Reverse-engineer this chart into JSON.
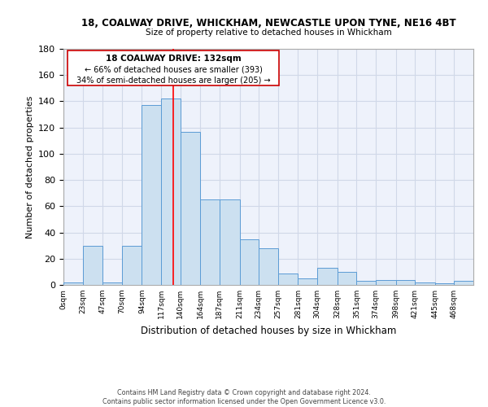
{
  "title1": "18, COALWAY DRIVE, WHICKHAM, NEWCASTLE UPON TYNE, NE16 4BT",
  "title2": "Size of property relative to detached houses in Whickham",
  "xlabel": "Distribution of detached houses by size in Whickham",
  "ylabel": "Number of detached properties",
  "annotation_line1": "18 COALWAY DRIVE: 132sqm",
  "annotation_line2": "← 66% of detached houses are smaller (393)",
  "annotation_line3": "34% of semi-detached houses are larger (205) →",
  "property_value": 132,
  "bin_edges": [
    0,
    23,
    47,
    70,
    94,
    117,
    140,
    164,
    187,
    211,
    234,
    257,
    281,
    304,
    328,
    351,
    374,
    398,
    421,
    445,
    468,
    491
  ],
  "bar_heights": [
    2,
    30,
    2,
    30,
    137,
    142,
    117,
    65,
    65,
    35,
    28,
    9,
    5,
    13,
    10,
    3,
    4,
    4,
    2,
    1,
    3
  ],
  "bar_color": "#cce0f0",
  "bar_edge_color": "#5b9bd5",
  "line_color": "#ff0000",
  "grid_color": "#d0d8e8",
  "bg_color": "#eef2fb",
  "annotation_box_edge": "#cc0000",
  "footer_text": "Contains HM Land Registry data © Crown copyright and database right 2024.\nContains public sector information licensed under the Open Government Licence v3.0.",
  "ylim": [
    0,
    180
  ],
  "yticks": [
    0,
    20,
    40,
    60,
    80,
    100,
    120,
    140,
    160,
    180
  ],
  "tick_labels": [
    "0sqm",
    "23sqm",
    "47sqm",
    "70sqm",
    "94sqm",
    "117sqm",
    "140sqm",
    "164sqm",
    "187sqm",
    "211sqm",
    "234sqm",
    "257sqm",
    "281sqm",
    "304sqm",
    "328sqm",
    "351sqm",
    "374sqm",
    "398sqm",
    "421sqm",
    "445sqm",
    "468sqm"
  ]
}
